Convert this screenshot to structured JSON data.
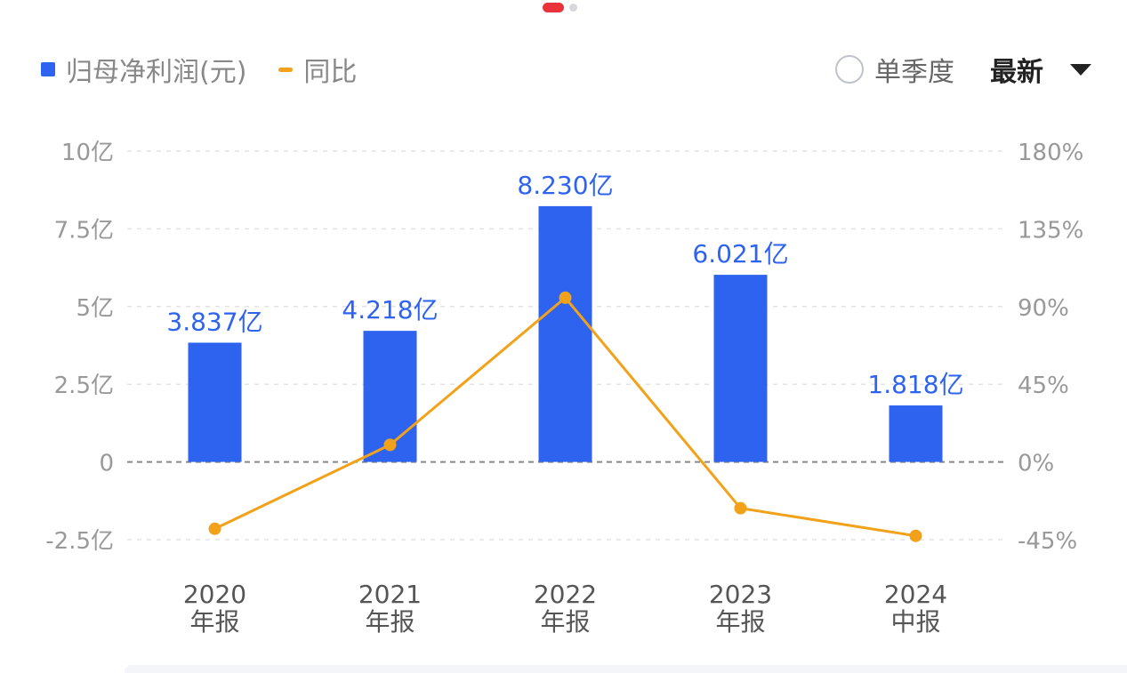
{
  "legend": {
    "bar_label": "归母净利润(元)",
    "line_label": "同比"
  },
  "controls": {
    "quarter_label": "单季度",
    "latest_label": "最新"
  },
  "colors": {
    "bar": "#2e63f0",
    "line": "#f2a21a",
    "bar_label": "#2e63f0",
    "axis_text": "#999999",
    "grid": "#e3e3e3",
    "zero_line": "#888888"
  },
  "icons": [
    "radio-icon",
    "caret-down-icon"
  ],
  "chart_data": {
    "type": "bar",
    "categories": [
      [
        "2020",
        "年报"
      ],
      [
        "2021",
        "年报"
      ],
      [
        "2022",
        "年报"
      ],
      [
        "2023",
        "年报"
      ],
      [
        "2024",
        "中报"
      ]
    ],
    "series": [
      {
        "name": "归母净利润(元)",
        "type": "bar",
        "axis": "left",
        "values": [
          3.837,
          4.218,
          8.23,
          6.021,
          1.818
        ],
        "labels": [
          "3.837亿",
          "4.218亿",
          "8.230亿",
          "6.021亿",
          "1.818亿"
        ]
      },
      {
        "name": "同比",
        "type": "line",
        "axis": "right",
        "values": [
          -38.7,
          9.9,
          95.1,
          -26.8,
          -42.8
        ]
      }
    ],
    "left_axis": {
      "ylim": [
        -2.5,
        10
      ],
      "ticks": [
        10,
        7.5,
        5,
        2.5,
        0,
        -2.5
      ],
      "tick_labels": [
        "10亿",
        "7.5亿",
        "5亿",
        "2.5亿",
        "0",
        "-2.5亿"
      ]
    },
    "right_axis": {
      "ylim": [
        -45,
        180
      ],
      "ticks": [
        180,
        135,
        90,
        45,
        0,
        -45
      ],
      "tick_labels": [
        "180%",
        "135%",
        "90%",
        "45%",
        "0%",
        "-45%"
      ]
    },
    "grid": true
  }
}
